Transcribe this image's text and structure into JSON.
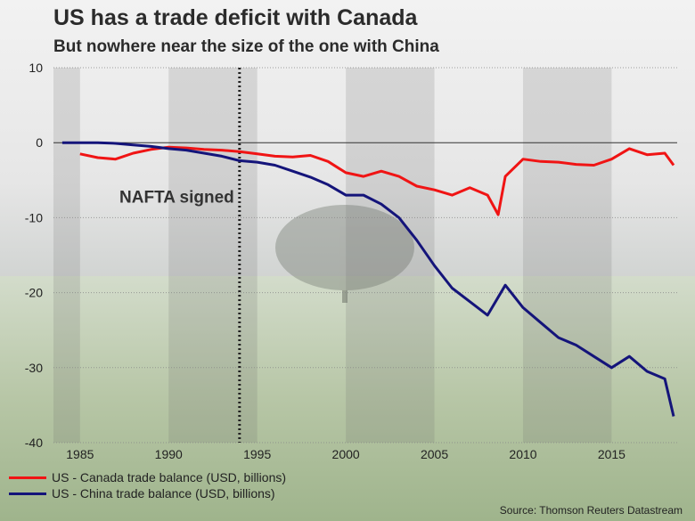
{
  "title": "US has a trade deficit with Canada",
  "subtitle": "But nowhere near the size of the one with China",
  "source": "Source: Thomson Reuters Datastream",
  "colors": {
    "canada": "#f01414",
    "china": "#14147a",
    "nafta_line": "#222222"
  },
  "chart_data": {
    "type": "line",
    "title": "US has a trade deficit with Canada",
    "xlim": [
      1983.5,
      2018.7
    ],
    "ylim": [
      -40,
      10
    ],
    "x_ticks": [
      1985,
      1990,
      1995,
      2000,
      2005,
      2010,
      2015
    ],
    "y_ticks": [
      10,
      0,
      -10,
      -20,
      -30,
      -40
    ],
    "annotation": {
      "text": "NAFTA signed",
      "x": 1994.0
    },
    "series": [
      {
        "name": "US - Canada trade balance (USD, billions)",
        "color": "#f01414",
        "points": [
          [
            1985.0,
            -1.5
          ],
          [
            1986.0,
            -2.0
          ],
          [
            1987.0,
            -2.2
          ],
          [
            1988.0,
            -1.4
          ],
          [
            1989.0,
            -0.9
          ],
          [
            1990.0,
            -0.6
          ],
          [
            1991.0,
            -0.7
          ],
          [
            1992.0,
            -0.9
          ],
          [
            1993.0,
            -1.0
          ],
          [
            1994.0,
            -1.2
          ],
          [
            1995.0,
            -1.5
          ],
          [
            1996.0,
            -1.8
          ],
          [
            1997.0,
            -1.9
          ],
          [
            1998.0,
            -1.7
          ],
          [
            1999.0,
            -2.5
          ],
          [
            2000.0,
            -4.0
          ],
          [
            2001.0,
            -4.5
          ],
          [
            2002.0,
            -3.8
          ],
          [
            2003.0,
            -4.5
          ],
          [
            2004.0,
            -5.8
          ],
          [
            2005.0,
            -6.3
          ],
          [
            2006.0,
            -7.0
          ],
          [
            2007.0,
            -6.0
          ],
          [
            2008.0,
            -7.0
          ],
          [
            2008.6,
            -9.6
          ],
          [
            2009.0,
            -4.5
          ],
          [
            2010.0,
            -2.2
          ],
          [
            2011.0,
            -2.5
          ],
          [
            2012.0,
            -2.6
          ],
          [
            2013.0,
            -2.9
          ],
          [
            2014.0,
            -3.0
          ],
          [
            2015.0,
            -2.2
          ],
          [
            2016.0,
            -0.8
          ],
          [
            2017.0,
            -1.6
          ],
          [
            2018.0,
            -1.4
          ],
          [
            2018.5,
            -3.0
          ]
        ]
      },
      {
        "name": "US - China trade balance (USD, billions)",
        "color": "#14147a",
        "points": [
          [
            1984.0,
            0.0
          ],
          [
            1985.0,
            0.0
          ],
          [
            1986.0,
            0.0
          ],
          [
            1987.0,
            -0.1
          ],
          [
            1988.0,
            -0.3
          ],
          [
            1989.0,
            -0.5
          ],
          [
            1990.0,
            -0.8
          ],
          [
            1991.0,
            -1.0
          ],
          [
            1992.0,
            -1.4
          ],
          [
            1993.0,
            -1.8
          ],
          [
            1994.0,
            -2.4
          ],
          [
            1995.0,
            -2.6
          ],
          [
            1996.0,
            -3.0
          ],
          [
            1997.0,
            -3.8
          ],
          [
            1998.0,
            -4.6
          ],
          [
            1999.0,
            -5.6
          ],
          [
            2000.0,
            -7.0
          ],
          [
            2001.0,
            -7.0
          ],
          [
            2002.0,
            -8.2
          ],
          [
            2003.0,
            -10.0
          ],
          [
            2004.0,
            -13.0
          ],
          [
            2005.0,
            -16.4
          ],
          [
            2006.0,
            -19.4
          ],
          [
            2007.0,
            -21.2
          ],
          [
            2008.0,
            -23.0
          ],
          [
            2009.0,
            -19.0
          ],
          [
            2010.0,
            -22.0
          ],
          [
            2011.0,
            -24.0
          ],
          [
            2012.0,
            -26.0
          ],
          [
            2013.0,
            -27.0
          ],
          [
            2014.0,
            -28.5
          ],
          [
            2015.0,
            -30.0
          ],
          [
            2016.0,
            -28.5
          ],
          [
            2017.0,
            -30.5
          ],
          [
            2018.0,
            -31.5
          ],
          [
            2018.5,
            -36.5
          ]
        ]
      }
    ]
  }
}
